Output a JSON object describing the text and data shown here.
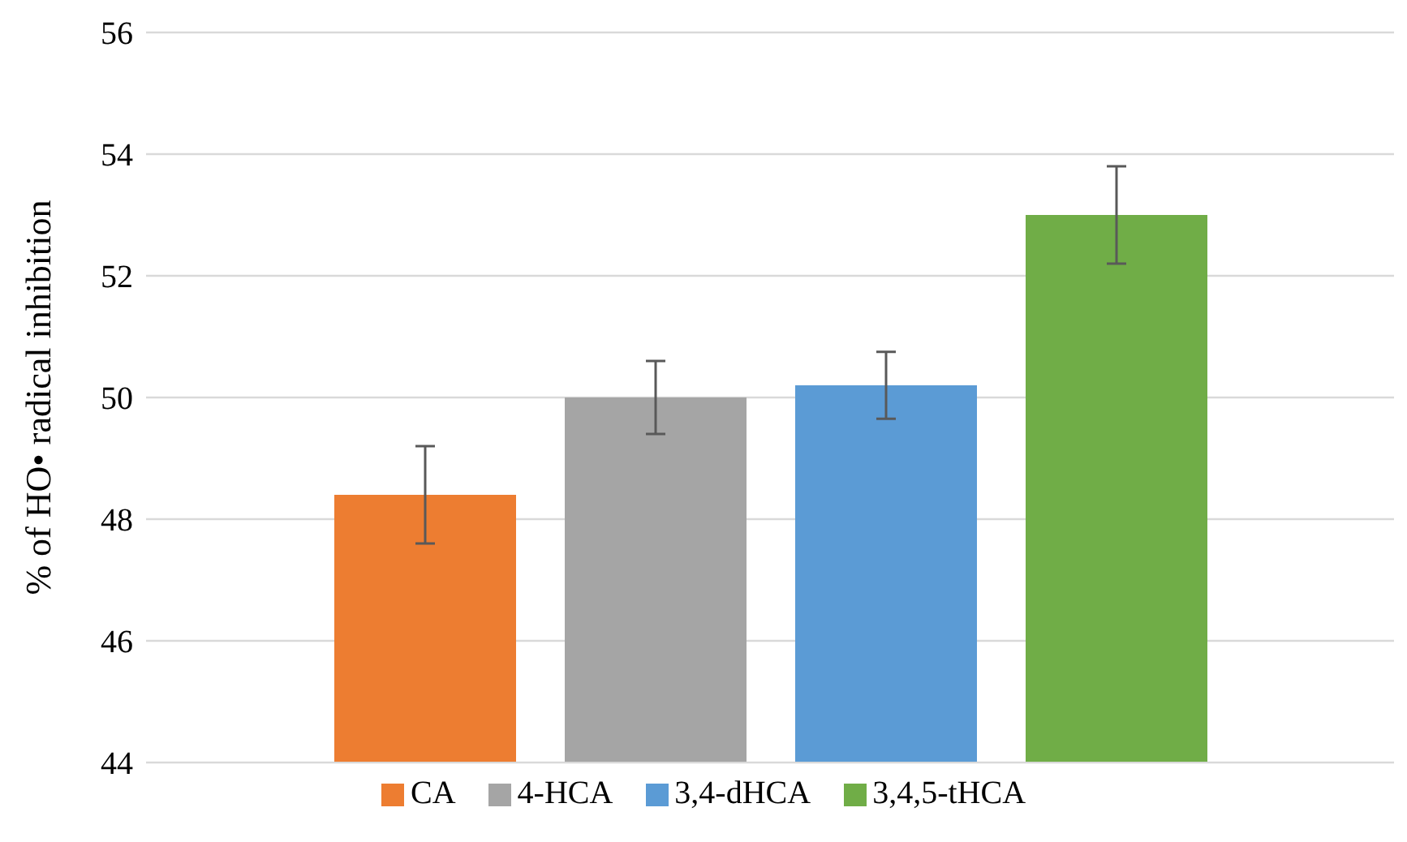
{
  "chart_data": {
    "type": "bar",
    "ylabel": "% of HO• radical inhibition",
    "categories": [
      null
    ],
    "series": [
      {
        "name": "CA",
        "color": "#ed7d31",
        "values": [
          48.4
        ],
        "errors": [
          0.8
        ]
      },
      {
        "name": "4-HCA",
        "color": "#a5a5a5",
        "values": [
          50.0
        ],
        "errors": [
          0.6
        ]
      },
      {
        "name": "3,4-dHCA",
        "color": "#5b9bd5",
        "values": [
          50.2
        ],
        "errors": [
          0.55
        ]
      },
      {
        "name": "3,4,5-tHCA",
        "color": "#70ad47",
        "values": [
          53.0
        ],
        "errors": [
          0.8
        ]
      }
    ],
    "ylim": [
      44,
      56
    ],
    "yticks": [
      44,
      46,
      48,
      50,
      52,
      54,
      56
    ],
    "grid": "y",
    "legend": "bottom"
  }
}
